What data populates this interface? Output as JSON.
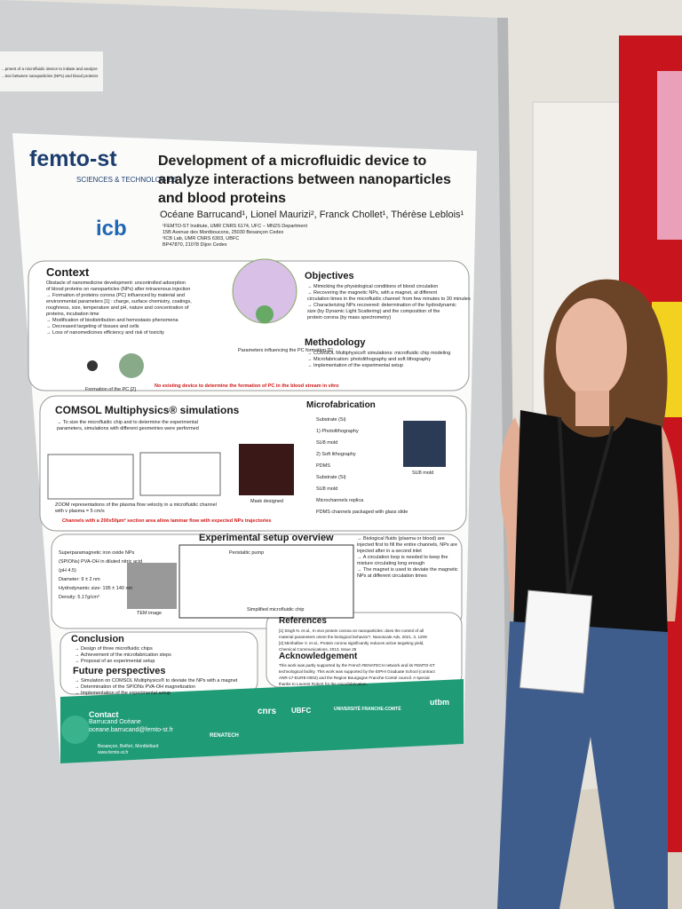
{
  "label_card": {
    "line1": "...pment of a microfluidic device to initiate and analyze",
    "line2": "...tion between nanoparticles (NPs) and blood proteins"
  },
  "poster": {
    "logo_femto": "femto-st",
    "logo_femto_sub": "SCIENCES & TECHNOLOGIES",
    "logo_icb": "icb",
    "title": "Development of a microfluidic device to analyze interactions between nanoparticles and blood proteins",
    "authors": "Océane Barrucand¹, Lionel Maurizi², Franck Chollet¹, Thérèse Leblois¹",
    "affiliations": [
      "¹FEMTO-ST Institute, UMR CNRS 6174, UFC – MN2S Department",
      "15B Avenue des Montboucons, 25030 Besançon Cedex",
      "²ICB Lab, UMR CNRS 6303, UBFC",
      "BP47870, 21078 Dijon Cedex"
    ],
    "context": {
      "heading": "Context",
      "lines": [
        "Obstacle of nanomedicine development: uncontrolled adsorption",
        "of blood proteins on nanoparticles (NPs) after intravenous injection",
        "→ Formation of proteins corona (PC) influenced by material and",
        "environmental parameters [1] : charge, surface chemistry, coatings,",
        "roughness, size, temperature and pH, nature and concentration of",
        "proteins, incubation time",
        "→ Modification of biodistribution and hemostasis phenomena",
        "→ Decreased targeting of tissues and cells",
        "→ Loss of nanomedicines efficiency and risk of toxicity"
      ],
      "figure_caption": "Parameters influencing the PC formation [1]",
      "pc_caption": "Formation of the PC [2]",
      "note": "No existing device to determine the formation of PC in the blood stream in vitro"
    },
    "objectives": {
      "heading": "Objectives",
      "lines": [
        "→ Mimicking the physiological conditions of blood circulation",
        "→ Recovering the magnetic NPs, with a magnet, at different",
        "circulation times in the microfluidic channel: from few minutes to 30 minutes",
        "→ Characterizing NPs recovered: determination of the hydrodynamic",
        "size (by Dynamic Light Scattering) and the composition of the",
        "protein corona (by mass spectrometry)"
      ]
    },
    "methodology": {
      "heading": "Methodology",
      "lines": [
        "→ COMSOL Multiphysics® simulations: microfluidic chip modeling",
        "→ Microfabrication: photolithography and soft lithography",
        "→ Implementation of the experimental setup"
      ]
    },
    "comsol": {
      "heading": "COMSOL Multiphysics® simulations",
      "lines": [
        "→ To size the microfluidic chip and to determine the experimental",
        "parameters, simulations with different geometries were performed"
      ],
      "caption": "ZOOM representations of the plasma flow velocity in a microfluidic channel with v plasma = 5 cm/s",
      "mask": "Mask designed",
      "note": "Channels with a 200x50µm² section area allow laminar flow with expected NPs trajectories"
    },
    "microfabrication": {
      "heading": "Microfabrication",
      "steps": [
        "Substrate (Si)",
        "1) Photolithography",
        "SU8 mold",
        "2) Soft lithography",
        "PDMS",
        "Substrate (Si)",
        "SU8 mold",
        "Microchannels replica",
        "PDMS channels packaged with glass slide"
      ],
      "su8": "SU8 mold"
    },
    "experimental": {
      "heading": "Experimental setup overview",
      "left": [
        "Superparamagnetic iron oxide NPs",
        "(SPIONs) PVA-OH in diluted nitric acid",
        "(pH 4.5)",
        "Diameter: 9 ± 2 nm",
        "Hydrodynamic size: 195 ± 140 nm",
        "Density: 5.17g/cm³"
      ],
      "tem": "TEM image",
      "pump": "Peristaltic pump",
      "chip": "Simplified microfluidic chip",
      "right": [
        "→ Biological fluids (plasma or blood) are",
        "injected first to fill the entire channels, NPs are",
        "injected after in a second inlet",
        "→ A circulation loop is needed to keep the",
        "mixture circulating long enough",
        "→ The magnet is used to deviate the magnetic",
        "NPs at different circulation times"
      ]
    },
    "conclusion": {
      "heading": "Conclusion",
      "lines": [
        "→ Design of three microfluidic chips",
        "→ Achievement of the microfabrication steps",
        "→ Proposal of an experimental setup"
      ]
    },
    "future": {
      "heading": "Future perspectives",
      "lines": [
        "→ Simulation on COMSOL Multiphysics® to deviate the NPs with a magnet",
        "→ Determination of the SPIONs PVA-OH magnetization",
        "→ Implementation of the experimental setup"
      ]
    },
    "references": {
      "heading": "References",
      "lines": [
        "[1] Singh N. et al., In vivo protein corona on nanoparticles: does the control of all",
        "material parameters orient the biological behavior?, Nanoscale Adv, 2021, 3, 1209",
        "[2] Mirshafiee V. et al., Protein corona significantly reduces active targeting yield,",
        "Chemical Communications, 2013, Issue 25"
      ]
    },
    "acknowledgement": {
      "heading": "Acknowledgement",
      "lines": [
        "This work was partly supported by the French RENATECH network and its FEMTO-ST",
        "technological facility. This work was supported by the EIPHI Graduate School (contract",
        "ANR-17-EURE-0002) and the Region Bourgogne Franche-Comté council. A special",
        "thanks to Laurent Robert for the microfabrication."
      ]
    },
    "contact": {
      "heading": "Contact",
      "name": "Barrucand Océane",
      "email": "oceane.barrucand@femto-st.fr",
      "cities": "Besançon, Belfort, Montbéliard",
      "web": "www.femto-st.fr"
    },
    "sponsors": [
      "cnrs",
      "UBFC",
      "UNIVERSITÉ FRANCHE-COMTÉ",
      "utbm",
      "RENATECH"
    ]
  }
}
